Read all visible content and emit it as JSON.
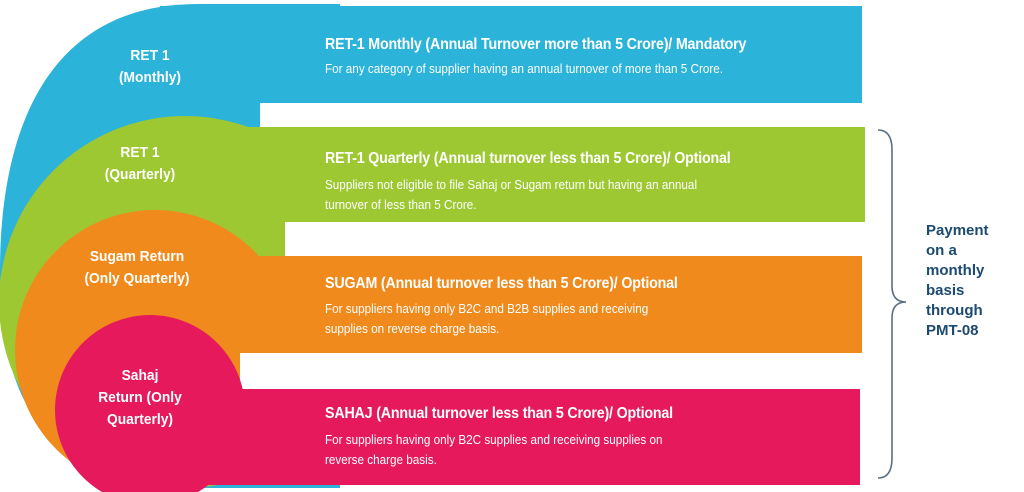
{
  "tiers": [
    {
      "label_lines": [
        "RET 1",
        "(Monthly)"
      ],
      "title": "RET-1 Monthly (Annual Turnover more than 5 Crore)/ Mandatory",
      "desc_lines": [
        "For any category of supplier having an annual turnover of more than 5 Crore."
      ],
      "color": "#2bb3d9"
    },
    {
      "label_lines": [
        "RET 1",
        "(Quarterly)"
      ],
      "title": "RET-1 Quarterly (Annual turnover less than 5 Crore)/ Optional",
      "desc_lines": [
        "Suppliers not eligible to file Sahaj or Sugam return but having an annual",
        "turnover of less than 5 Crore."
      ],
      "color": "#9dc832"
    },
    {
      "label_lines": [
        "Sugam Return",
        "(Only Quarterly)"
      ],
      "title": "SUGAM (Annual turnover less than 5 Crore)/ Optional",
      "desc_lines": [
        "For suppliers having only B2C and B2B supplies and receiving",
        "supplies on reverse charge basis."
      ],
      "color": "#f08a1d"
    },
    {
      "label_lines": [
        "Sahaj",
        "Return (Only",
        "Quarterly)"
      ],
      "title": "SAHAJ (Annual turnover less than 5 Crore)/ Optional",
      "desc_lines": [
        "For suppliers having only B2C supplies and receiving supplies on",
        "reverse charge basis."
      ],
      "color": "#e5195c"
    }
  ],
  "payment_note_lines": [
    "Payment",
    "on a",
    "monthly",
    "basis",
    "through",
    "PMT-08"
  ],
  "brace_color": "#5a6e80",
  "note_color": "#1c4a70"
}
